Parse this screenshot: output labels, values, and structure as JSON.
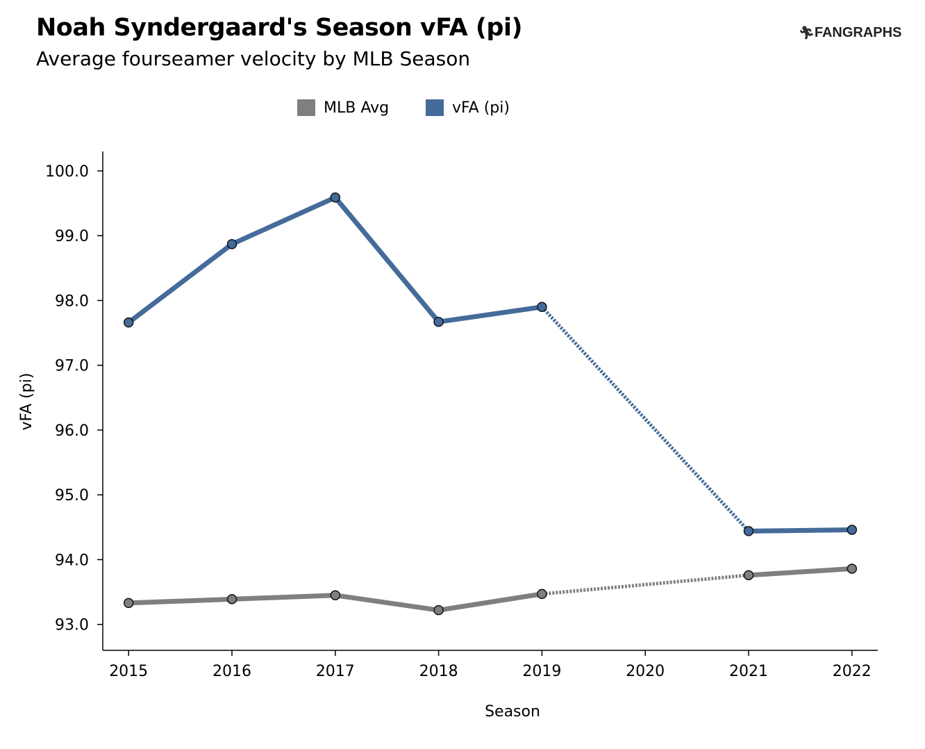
{
  "title": "Noah Syndergaard's Season vFA (pi)",
  "subtitle": "Average fourseamer velocity by MLB Season",
  "logo": {
    "text": "FANGRAPHS",
    "mark_icon": "fangraphs-runner-icon"
  },
  "colors": {
    "mlb_avg": "#7f7f7f",
    "vfa": "#456b9a"
  },
  "chart_data": {
    "type": "line",
    "xlabel": "Season",
    "ylabel": "vFA (pi)",
    "x": [
      2015,
      2016,
      2017,
      2018,
      2019,
      2020,
      2021,
      2022
    ],
    "x_tick_labels": [
      "2015",
      "2016",
      "2017",
      "2018",
      "2019",
      "2020",
      "2021",
      "2022"
    ],
    "y_tick_values": [
      93.0,
      94.0,
      95.0,
      96.0,
      97.0,
      98.0,
      99.0,
      100.0
    ],
    "y_tick_labels": [
      "93.0",
      "94.0",
      "95.0",
      "96.0",
      "97.0",
      "98.0",
      "99.0",
      "100.0"
    ],
    "xlim": [
      2014.75,
      2022.25
    ],
    "ylim": [
      92.6,
      100.3
    ],
    "grid": false,
    "legend_position": "top-center",
    "gap_style": "dotted line bridges the missing 2020 season",
    "series": [
      {
        "name": "MLB Avg",
        "color": "#7f7f7f",
        "points": [
          {
            "x": 2015,
            "y": 93.33
          },
          {
            "x": 2016,
            "y": 93.39
          },
          {
            "x": 2017,
            "y": 93.45
          },
          {
            "x": 2018,
            "y": 93.22
          },
          {
            "x": 2019,
            "y": 93.47
          },
          {
            "x": 2021,
            "y": 93.76
          },
          {
            "x": 2022,
            "y": 93.86
          }
        ]
      },
      {
        "name": "vFA (pi)",
        "color": "#456b9a",
        "points": [
          {
            "x": 2015,
            "y": 97.66
          },
          {
            "x": 2016,
            "y": 98.87
          },
          {
            "x": 2017,
            "y": 99.59
          },
          {
            "x": 2018,
            "y": 97.67
          },
          {
            "x": 2019,
            "y": 97.9
          },
          {
            "x": 2021,
            "y": 94.44
          },
          {
            "x": 2022,
            "y": 94.46
          }
        ]
      }
    ]
  }
}
